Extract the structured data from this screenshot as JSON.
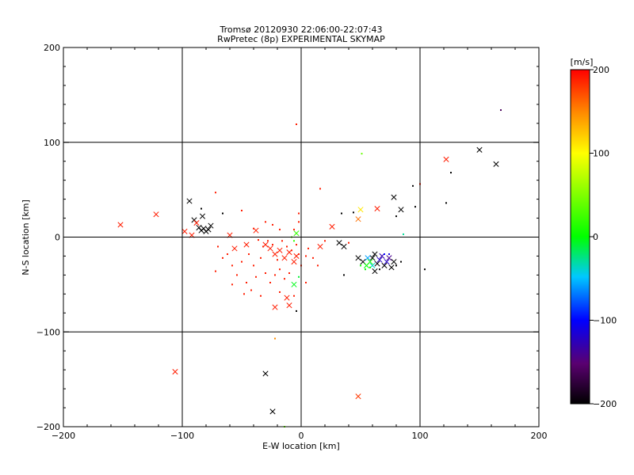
{
  "chart_data": {
    "type": "scatter",
    "title": "Tromsø 20120930 22:06:00-22:07:43",
    "subtitle": "RwPretec (8p) EXPERIMENTAL SKYMAP",
    "xlabel": "E-W location [km]",
    "ylabel": "N-S location [km]",
    "xlim": [
      -200,
      200
    ],
    "ylim": [
      -200,
      200
    ],
    "x_ticks": [
      -200,
      -100,
      0,
      100,
      200
    ],
    "y_ticks": [
      -200,
      -100,
      0,
      100,
      200
    ],
    "x_tick_labels": [
      "−200",
      "−100",
      "0",
      "100",
      "200"
    ],
    "y_tick_labels": [
      "−200",
      "−100",
      "0",
      "100",
      "200"
    ],
    "grid": true,
    "colorbar": {
      "label": "[m/s]",
      "range": [
        -200,
        200
      ],
      "ticks": [
        200,
        100,
        0,
        -100,
        -200
      ],
      "tick_labels": [
        "200",
        "100",
        "0",
        "−100",
        "−200"
      ],
      "colormap": "black-purple-blue-cyan-green-yellow-orange-red"
    },
    "points": [
      {
        "x": -152,
        "y": 13,
        "v": 190,
        "m": "x"
      },
      {
        "x": -122,
        "y": 24,
        "v": 190,
        "m": "x"
      },
      {
        "x": -106,
        "y": -142,
        "v": 190,
        "m": "x"
      },
      {
        "x": -98,
        "y": 6,
        "v": 190,
        "m": "x"
      },
      {
        "x": -94,
        "y": 38,
        "v": -200,
        "m": "x"
      },
      {
        "x": -90,
        "y": 18,
        "v": -200,
        "m": "x"
      },
      {
        "x": -88,
        "y": 15,
        "v": 190,
        "m": "x"
      },
      {
        "x": -86,
        "y": 10,
        "v": -200,
        "m": "x"
      },
      {
        "x": -84,
        "y": 7,
        "v": -200,
        "m": "x"
      },
      {
        "x": -82,
        "y": 9,
        "v": -200,
        "m": "x"
      },
      {
        "x": -80,
        "y": 6,
        "v": -200,
        "m": "x"
      },
      {
        "x": -78,
        "y": 8,
        "v": -200,
        "m": "x"
      },
      {
        "x": -83,
        "y": 22,
        "v": -200,
        "m": "x"
      },
      {
        "x": -76,
        "y": 12,
        "v": -200,
        "m": "x"
      },
      {
        "x": -92,
        "y": 2,
        "v": 190,
        "m": "x"
      },
      {
        "x": -60,
        "y": 2,
        "v": 190,
        "m": "x"
      },
      {
        "x": -56,
        "y": -12,
        "v": 190,
        "m": "x"
      },
      {
        "x": -46,
        "y": -8,
        "v": 190,
        "m": "x"
      },
      {
        "x": -38,
        "y": 7,
        "v": 190,
        "m": "x"
      },
      {
        "x": -30,
        "y": -8,
        "v": 190,
        "m": "x"
      },
      {
        "x": -26,
        "y": -12,
        "v": 190,
        "m": "x"
      },
      {
        "x": -22,
        "y": -18,
        "v": 190,
        "m": "x"
      },
      {
        "x": -18,
        "y": -14,
        "v": 190,
        "m": "x"
      },
      {
        "x": -14,
        "y": -22,
        "v": 190,
        "m": "x"
      },
      {
        "x": -10,
        "y": -16,
        "v": 190,
        "m": "x"
      },
      {
        "x": -6,
        "y": -26,
        "v": 190,
        "m": "x"
      },
      {
        "x": -4,
        "y": -20,
        "v": 190,
        "m": "x"
      },
      {
        "x": -12,
        "y": -64,
        "v": 190,
        "m": "x"
      },
      {
        "x": -10,
        "y": -72,
        "v": 190,
        "m": "x"
      },
      {
        "x": -22,
        "y": -74,
        "v": 190,
        "m": "x"
      },
      {
        "x": -30,
        "y": -144,
        "v": -200,
        "m": "x"
      },
      {
        "x": -24,
        "y": -184,
        "v": -200,
        "m": "x"
      },
      {
        "x": -6,
        "y": -50,
        "v": -5,
        "m": "x"
      },
      {
        "x": -4,
        "y": 4,
        "v": 20,
        "m": "x"
      },
      {
        "x": 16,
        "y": -10,
        "v": 190,
        "m": "x"
      },
      {
        "x": 26,
        "y": 11,
        "v": 190,
        "m": "x"
      },
      {
        "x": 32,
        "y": -6,
        "v": -200,
        "m": "x"
      },
      {
        "x": 36,
        "y": -10,
        "v": -200,
        "m": "x"
      },
      {
        "x": 48,
        "y": 19,
        "v": 160,
        "m": "x"
      },
      {
        "x": 50,
        "y": 29,
        "v": 110,
        "m": "x"
      },
      {
        "x": 48,
        "y": -168,
        "v": 180,
        "m": "x"
      },
      {
        "x": 64,
        "y": 30,
        "v": 190,
        "m": "x"
      },
      {
        "x": 48,
        "y": -22,
        "v": -200,
        "m": "x"
      },
      {
        "x": 52,
        "y": -26,
        "v": -200,
        "m": "x"
      },
      {
        "x": 55,
        "y": -30,
        "v": 0,
        "m": "x"
      },
      {
        "x": 58,
        "y": -26,
        "v": 10,
        "m": "x"
      },
      {
        "x": 60,
        "y": -22,
        "v": -200,
        "m": "x"
      },
      {
        "x": 62,
        "y": -18,
        "v": -200,
        "m": "x"
      },
      {
        "x": 64,
        "y": -28,
        "v": -200,
        "m": "x"
      },
      {
        "x": 66,
        "y": -24,
        "v": -120,
        "m": "x"
      },
      {
        "x": 68,
        "y": -20,
        "v": -130,
        "m": "x"
      },
      {
        "x": 70,
        "y": -30,
        "v": -200,
        "m": "x"
      },
      {
        "x": 72,
        "y": -26,
        "v": -120,
        "m": "x"
      },
      {
        "x": 74,
        "y": -22,
        "v": -140,
        "m": "x"
      },
      {
        "x": 76,
        "y": -32,
        "v": -200,
        "m": "x"
      },
      {
        "x": 78,
        "y": -26,
        "v": -200,
        "m": "x"
      },
      {
        "x": 62,
        "y": -36,
        "v": -200,
        "m": "x"
      },
      {
        "x": 56,
        "y": -22,
        "v": -60,
        "m": "x"
      },
      {
        "x": 60,
        "y": -30,
        "v": -40,
        "m": "x"
      },
      {
        "x": 78,
        "y": 42,
        "v": -200,
        "m": "x"
      },
      {
        "x": 84,
        "y": 29,
        "v": -200,
        "m": "x"
      },
      {
        "x": 122,
        "y": 82,
        "v": 190,
        "m": "x"
      },
      {
        "x": 150,
        "y": 92,
        "v": -200,
        "m": "x"
      },
      {
        "x": 164,
        "y": 77,
        "v": -200,
        "m": "x"
      },
      {
        "x": -4,
        "y": 119,
        "v": 190,
        "m": "d"
      },
      {
        "x": 51,
        "y": 88,
        "v": 40,
        "m": "d"
      },
      {
        "x": 168,
        "y": 134,
        "v": -160,
        "m": "d"
      },
      {
        "x": -72,
        "y": 47,
        "v": 190,
        "m": "d"
      },
      {
        "x": -84,
        "y": 30,
        "v": -200,
        "m": "d"
      },
      {
        "x": -66,
        "y": 25,
        "v": -200,
        "m": "d"
      },
      {
        "x": -50,
        "y": 28,
        "v": 190,
        "m": "d"
      },
      {
        "x": -40,
        "y": 9,
        "v": 190,
        "m": "d"
      },
      {
        "x": -36,
        "y": -3,
        "v": 190,
        "m": "d"
      },
      {
        "x": -32,
        "y": -10,
        "v": 190,
        "m": "d"
      },
      {
        "x": -28,
        "y": -4,
        "v": 190,
        "m": "d"
      },
      {
        "x": -24,
        "y": -8,
        "v": 190,
        "m": "d"
      },
      {
        "x": -20,
        "y": -24,
        "v": 190,
        "m": "d"
      },
      {
        "x": -16,
        "y": -4,
        "v": 190,
        "m": "d"
      },
      {
        "x": -12,
        "y": -10,
        "v": 190,
        "m": "d"
      },
      {
        "x": -8,
        "y": -14,
        "v": 190,
        "m": "d"
      },
      {
        "x": -34,
        "y": -22,
        "v": 190,
        "m": "d"
      },
      {
        "x": -40,
        "y": -30,
        "v": 190,
        "m": "d"
      },
      {
        "x": -44,
        "y": -18,
        "v": 190,
        "m": "d"
      },
      {
        "x": -50,
        "y": -26,
        "v": 190,
        "m": "d"
      },
      {
        "x": -58,
        "y": -30,
        "v": 190,
        "m": "d"
      },
      {
        "x": -62,
        "y": -18,
        "v": 190,
        "m": "d"
      },
      {
        "x": -66,
        "y": -22,
        "v": 190,
        "m": "d"
      },
      {
        "x": -54,
        "y": -40,
        "v": 190,
        "m": "d"
      },
      {
        "x": -58,
        "y": -50,
        "v": 190,
        "m": "d"
      },
      {
        "x": -46,
        "y": -48,
        "v": 190,
        "m": "d"
      },
      {
        "x": -38,
        "y": -42,
        "v": 190,
        "m": "d"
      },
      {
        "x": -30,
        "y": -38,
        "v": 190,
        "m": "d"
      },
      {
        "x": -26,
        "y": -48,
        "v": 190,
        "m": "d"
      },
      {
        "x": -22,
        "y": -40,
        "v": 190,
        "m": "d"
      },
      {
        "x": -18,
        "y": -34,
        "v": 190,
        "m": "d"
      },
      {
        "x": -14,
        "y": -44,
        "v": 190,
        "m": "d"
      },
      {
        "x": -10,
        "y": -38,
        "v": 190,
        "m": "d"
      },
      {
        "x": -18,
        "y": -58,
        "v": 190,
        "m": "d"
      },
      {
        "x": -6,
        "y": -62,
        "v": 190,
        "m": "d"
      },
      {
        "x": -4,
        "y": -8,
        "v": 190,
        "m": "d"
      },
      {
        "x": -2,
        "y": -18,
        "v": 190,
        "m": "d"
      },
      {
        "x": 0,
        "y": -30,
        "v": 190,
        "m": "d"
      },
      {
        "x": 4,
        "y": -20,
        "v": 190,
        "m": "d"
      },
      {
        "x": 6,
        "y": -12,
        "v": 190,
        "m": "d"
      },
      {
        "x": 10,
        "y": -22,
        "v": 190,
        "m": "d"
      },
      {
        "x": 14,
        "y": -30,
        "v": 190,
        "m": "d"
      },
      {
        "x": 16,
        "y": 51,
        "v": 190,
        "m": "d"
      },
      {
        "x": 4,
        "y": -48,
        "v": 190,
        "m": "d"
      },
      {
        "x": -2,
        "y": 25,
        "v": 190,
        "m": "d"
      },
      {
        "x": -2,
        "y": 16,
        "v": 190,
        "m": "d"
      },
      {
        "x": -6,
        "y": 8,
        "v": 190,
        "m": "d"
      },
      {
        "x": -24,
        "y": 13,
        "v": 190,
        "m": "d"
      },
      {
        "x": -30,
        "y": 16,
        "v": 190,
        "m": "d"
      },
      {
        "x": -70,
        "y": -10,
        "v": 190,
        "m": "d"
      },
      {
        "x": -72,
        "y": -36,
        "v": 190,
        "m": "d"
      },
      {
        "x": -48,
        "y": -60,
        "v": 190,
        "m": "d"
      },
      {
        "x": -42,
        "y": -56,
        "v": 190,
        "m": "d"
      },
      {
        "x": -34,
        "y": -62,
        "v": 190,
        "m": "d"
      },
      {
        "x": -4,
        "y": -78,
        "v": -200,
        "m": "d"
      },
      {
        "x": -22,
        "y": -107,
        "v": 150,
        "m": "d"
      },
      {
        "x": -14,
        "y": -200,
        "v": 40,
        "m": "d"
      },
      {
        "x": -8,
        "y": 0,
        "v": 30,
        "m": "d"
      },
      {
        "x": -6,
        "y": -4,
        "v": 20,
        "m": "d"
      },
      {
        "x": -2,
        "y": -42,
        "v": -10,
        "m": "d"
      },
      {
        "x": -18,
        "y": 8,
        "v": 190,
        "m": "d"
      },
      {
        "x": 20,
        "y": -4,
        "v": 190,
        "m": "d"
      },
      {
        "x": 36,
        "y": -40,
        "v": -200,
        "m": "d"
      },
      {
        "x": 34,
        "y": 25,
        "v": -200,
        "m": "d"
      },
      {
        "x": 44,
        "y": 26,
        "v": -200,
        "m": "d"
      },
      {
        "x": 40,
        "y": -6,
        "v": 190,
        "m": "d"
      },
      {
        "x": 80,
        "y": 22,
        "v": -200,
        "m": "d"
      },
      {
        "x": 86,
        "y": 3,
        "v": -30,
        "m": "d"
      },
      {
        "x": 96,
        "y": 32,
        "v": -200,
        "m": "d"
      },
      {
        "x": 94,
        "y": 54,
        "v": -200,
        "m": "d"
      },
      {
        "x": 100,
        "y": 56,
        "v": 190,
        "m": "d"
      },
      {
        "x": 104,
        "y": -34,
        "v": -200,
        "m": "d"
      },
      {
        "x": 122,
        "y": 36,
        "v": -200,
        "m": "d"
      },
      {
        "x": 126,
        "y": 68,
        "v": -200,
        "m": "d"
      },
      {
        "x": 80,
        "y": -30,
        "v": -200,
        "m": "d"
      },
      {
        "x": 84,
        "y": -26,
        "v": -200,
        "m": "d"
      },
      {
        "x": 50,
        "y": -30,
        "v": 5,
        "m": "d"
      },
      {
        "x": 54,
        "y": -34,
        "v": 0,
        "m": "d"
      },
      {
        "x": 58,
        "y": -32,
        "v": 10,
        "m": "d"
      },
      {
        "x": 66,
        "y": -34,
        "v": -200,
        "m": "d"
      },
      {
        "x": 70,
        "y": -18,
        "v": -100,
        "m": "d"
      },
      {
        "x": 74,
        "y": -18,
        "v": -110,
        "m": "d"
      }
    ]
  }
}
